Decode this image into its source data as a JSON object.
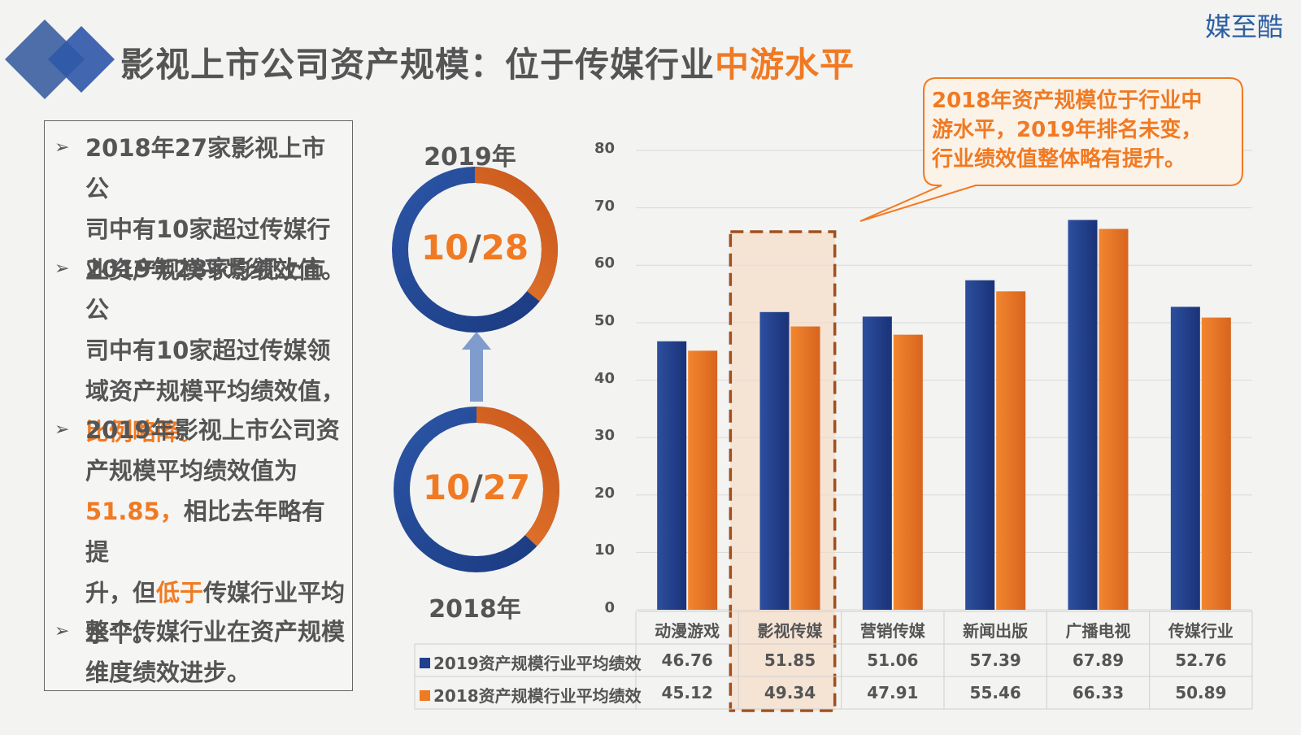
{
  "title": {
    "main": "影视上市公司资产规模：位于传媒行业",
    "highlight": "中游水平"
  },
  "brand": "媒至酷",
  "bullets": [
    {
      "lines": [
        "2018年27家影视上市公",
        "司中有10家超过传媒行",
        "业资产规模平均绩效值。"
      ]
    },
    {
      "lines": [
        "2019年28家影视上市公",
        "司中有10家超过传媒领",
        "域资产规模平均绩效值，"
      ],
      "emph": "比例略降。"
    },
    {
      "l1": "2019年影视上市公司资",
      "l2": "产规模平均绩效值为",
      "l3_num": "51.85，",
      "l3_rest": "相比去年略有提",
      "l4_a": "升，但",
      "l4_emph": "低于",
      "l4_b": "传媒行业平均",
      "l5": "水平。"
    },
    {
      "lines": [
        "整个传媒行业在资产规模",
        "维度绩效进步。"
      ]
    }
  ],
  "donuts": [
    {
      "year": "2019年",
      "num": "10",
      "sep": "/",
      "den": "28",
      "fraction": 0.357
    },
    {
      "year": "2018年",
      "num": "10",
      "sep": "/",
      "den": "27",
      "fraction": 0.37
    }
  ],
  "callout": [
    "2018年资产规模位于行业中",
    "游水平，2019年排名未变，",
    "行业绩效值整体略有提升。"
  ],
  "colors": {
    "series_2019": "#1f3f8f",
    "series_2018": "#f07a23",
    "highlight_box": "#a0501e"
  },
  "chart_data": {
    "type": "bar",
    "categories": [
      "动漫游戏",
      "影视传媒",
      "营销传媒",
      "新闻出版",
      "广播电视",
      "传媒行业"
    ],
    "series": [
      {
        "name": "2019资产规模行业平均绩效",
        "values": [
          46.76,
          51.85,
          51.06,
          57.39,
          67.89,
          52.76
        ]
      },
      {
        "name": "2018资产规模行业平均绩效",
        "values": [
          45.12,
          49.34,
          47.91,
          55.46,
          66.33,
          50.89
        ]
      }
    ],
    "yticks": [
      "0",
      "10",
      "20",
      "30",
      "40",
      "50",
      "60",
      "70",
      "80"
    ],
    "ylim": [
      0,
      80
    ],
    "grid": true,
    "highlight_category": "影视传媒",
    "legend": "data-table"
  }
}
